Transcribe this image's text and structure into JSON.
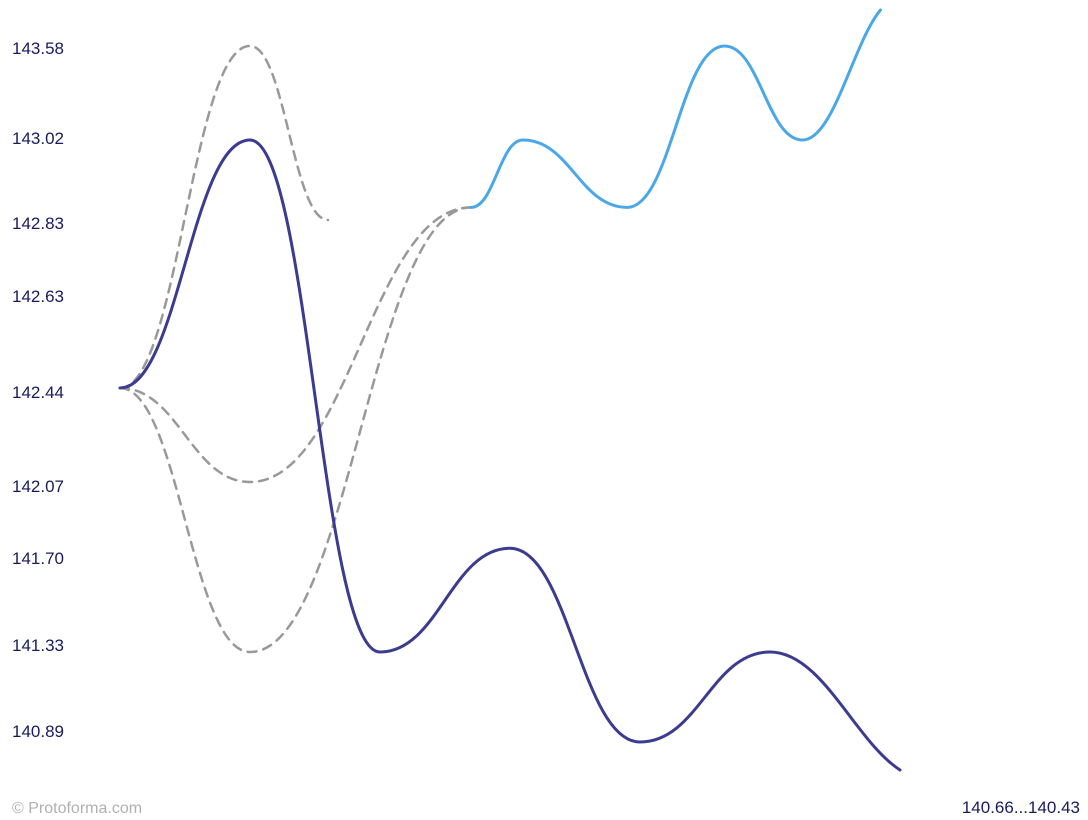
{
  "chart_data": {
    "type": "line",
    "title": "",
    "xlabel": "",
    "ylabel": "",
    "y_ticks": [
      "143.58",
      "143.02",
      "142.83",
      "142.63",
      "142.44",
      "142.07",
      "141.70",
      "141.33",
      "140.89"
    ],
    "ylim": [
      140.55,
      143.85
    ],
    "grid": false,
    "legend": "none",
    "series": [
      {
        "style": "solid",
        "color": "#3b3b8f",
        "x": [
          0,
          1,
          2,
          3,
          4,
          5
        ],
        "y": [
          142.44,
          143.02,
          141.33,
          141.72,
          140.89,
          141.33
        ],
        "end": [
          6.0,
          140.66
        ]
      },
      {
        "style": "solid",
        "color": "#4aa8e8",
        "x": [
          2.7,
          3.1,
          3.9,
          4.65,
          5.25
        ],
        "y": [
          142.86,
          143.02,
          142.86,
          143.58,
          143.02
        ],
        "end": [
          5.85,
          143.8
        ]
      },
      {
        "style": "dashed",
        "color": "#999999",
        "x": [
          0,
          1,
          1.6
        ],
        "y": [
          142.44,
          143.58,
          142.83
        ]
      },
      {
        "style": "dashed",
        "color": "#999999",
        "x": [
          0,
          1,
          2.7
        ],
        "y": [
          142.44,
          142.07,
          142.86
        ]
      },
      {
        "style": "dashed",
        "color": "#999999",
        "x": [
          0,
          1,
          2.7
        ],
        "y": [
          142.44,
          141.33,
          142.86
        ]
      }
    ],
    "range_label": "140.66...140.43"
  },
  "watermark": "© Protoforma.com"
}
